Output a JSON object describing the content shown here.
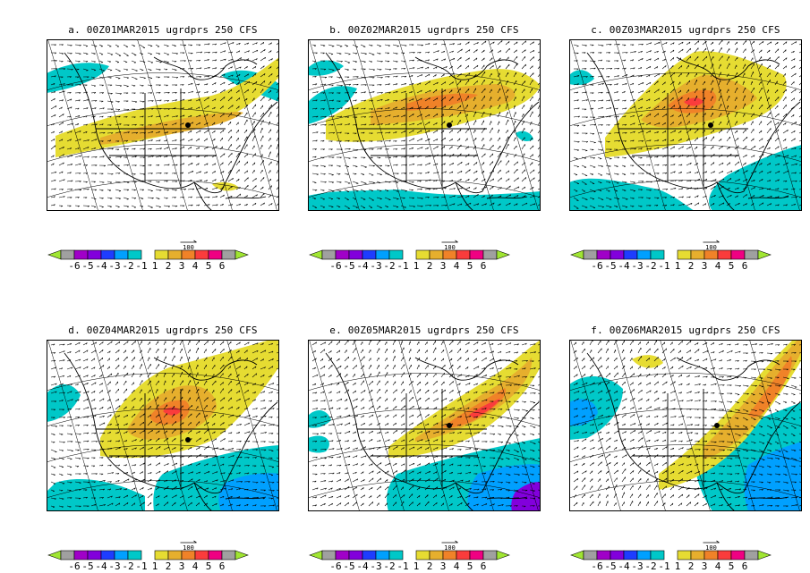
{
  "colors": {
    "neg6": "#a0e632",
    "neg5": "#a0a0a0",
    "neg4": "#a000c8",
    "neg3": "#8200dc",
    "neg2": "#1e3cff",
    "neg1": "#00a0ff",
    "neg0": "#00c8c8",
    "pos1": "#e6dc32",
    "pos2": "#e6af2d",
    "pos3": "#f08228",
    "pos4": "#fa3c3c",
    "pos5": "#f00082",
    "pos6": "#a0a0a0",
    "pos7": "#a0e632",
    "map_bg": "#ffffff",
    "lines": "#000000"
  },
  "colorbar": {
    "labels": [
      "-6",
      "-5",
      "-4",
      "-3",
      "-2",
      "-1",
      "1",
      "2",
      "3",
      "4",
      "5",
      "6"
    ],
    "vector_ref": "100"
  },
  "chart_data": [
    {
      "type": "heatmap",
      "panel": "a",
      "title": "a. 00Z01MAR2015 ugrdprs 250 CFS",
      "field": "ugrdprs",
      "level": "250",
      "model": "CFS",
      "valid": "00Z01MAR2015"
    },
    {
      "type": "heatmap",
      "panel": "b",
      "title": "b. 00Z02MAR2015 ugrdprs 250 CFS",
      "field": "ugrdprs",
      "level": "250",
      "model": "CFS",
      "valid": "00Z02MAR2015"
    },
    {
      "type": "heatmap",
      "panel": "c",
      "title": "c. 00Z03MAR2015 ugrdprs 250 CFS",
      "field": "ugrdprs",
      "level": "250",
      "model": "CFS",
      "valid": "00Z03MAR2015"
    },
    {
      "type": "heatmap",
      "panel": "d",
      "title": "d. 00Z04MAR2015 ugrdprs 250 CFS",
      "field": "ugrdprs",
      "level": "250",
      "model": "CFS",
      "valid": "00Z04MAR2015"
    },
    {
      "type": "heatmap",
      "panel": "e",
      "title": "e. 00Z05MAR2015 ugrdprs 250 CFS",
      "field": "ugrdprs",
      "level": "250",
      "model": "CFS",
      "valid": "00Z05MAR2015"
    },
    {
      "type": "heatmap",
      "panel": "f",
      "title": "f. 00Z06MAR2015 ugrdprs 250 CFS",
      "field": "ugrdprs",
      "level": "250",
      "model": "CFS",
      "valid": "00Z06MAR2015"
    }
  ]
}
